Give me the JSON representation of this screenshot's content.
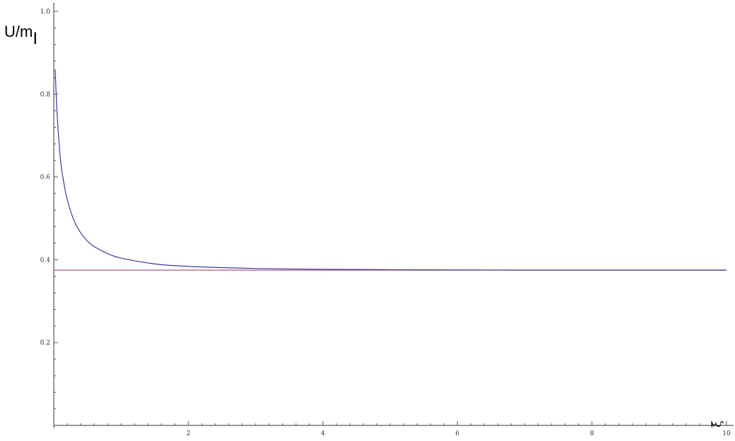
{
  "chart_data": {
    "type": "line",
    "title": "",
    "ylabel": {
      "main": "U/m",
      "subscript": "I"
    },
    "xlabel": "ξ",
    "xlim": [
      0,
      10
    ],
    "ylim": [
      0,
      1.0
    ],
    "x_ticks": [
      2,
      4,
      6,
      8,
      10
    ],
    "x_tick_labels": [
      "2",
      "4",
      "6",
      "8",
      "10"
    ],
    "y_ticks": [
      0.2,
      0.4,
      0.6,
      0.8,
      1.0
    ],
    "y_tick_labels": [
      "0.2",
      "0.4",
      "0.6",
      "0.8",
      "1.0"
    ],
    "grid": false,
    "series": [
      {
        "color": "#3a3a9a",
        "x": [
          0.02,
          0.05,
          0.1,
          0.15,
          0.2,
          0.3,
          0.4,
          0.5,
          0.6,
          0.8,
          1.0,
          1.5,
          2.0,
          3.0,
          4.0,
          5.0,
          6.0,
          7.0,
          8.0,
          9.0,
          10.0
        ],
        "y": [
          0.86,
          0.75,
          0.64,
          0.585,
          0.545,
          0.495,
          0.465,
          0.445,
          0.432,
          0.415,
          0.404,
          0.39,
          0.384,
          0.379,
          0.377,
          0.376,
          0.3755,
          0.375,
          0.375,
          0.375,
          0.375
        ]
      },
      {
        "color": "#b3557a",
        "x": [
          0,
          10
        ],
        "y": [
          0.375,
          0.375
        ]
      }
    ]
  }
}
